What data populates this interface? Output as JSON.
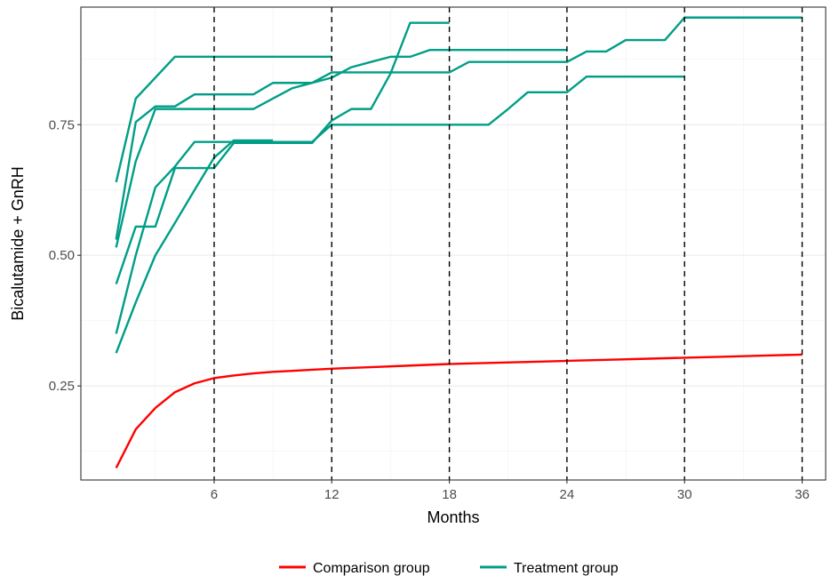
{
  "chart_data": {
    "type": "line",
    "title": "",
    "xlabel": "Months",
    "ylabel": "Bicalutamide + GnRH",
    "xlim": [
      -0.8,
      37.2
    ],
    "ylim": [
      0.07,
      0.975
    ],
    "x_ticks": [
      6,
      12,
      18,
      24,
      30,
      36
    ],
    "x_tick_labels": [
      "6",
      "12",
      "18",
      "24",
      "30",
      "36"
    ],
    "y_ticks": [
      0.25,
      0.5,
      0.75
    ],
    "y_tick_labels": [
      "0.25",
      "0.50",
      "0.75"
    ],
    "vlines": [
      6,
      12,
      18,
      24,
      30,
      36
    ],
    "grid": true,
    "legend_position": "bottom",
    "colors": {
      "comparison": "#ff0000",
      "treatment": "#009e87"
    },
    "legend": [
      {
        "label": "Comparison group",
        "color": "#ff0000"
      },
      {
        "label": "Treatment group",
        "color": "#009e87"
      }
    ],
    "series": [
      {
        "name": "Comparison group",
        "color": "#ff0000",
        "points": [
          [
            1,
            0.093
          ],
          [
            2,
            0.167
          ],
          [
            3,
            0.208
          ],
          [
            4,
            0.238
          ],
          [
            5,
            0.255
          ],
          [
            6,
            0.265
          ],
          [
            7,
            0.27
          ],
          [
            8,
            0.274
          ],
          [
            9,
            0.277
          ],
          [
            10,
            0.279
          ],
          [
            11,
            0.281
          ],
          [
            12,
            0.283
          ],
          [
            14,
            0.286
          ],
          [
            16,
            0.289
          ],
          [
            18,
            0.292
          ],
          [
            20,
            0.294
          ],
          [
            22,
            0.296
          ],
          [
            24,
            0.298
          ],
          [
            26,
            0.3
          ],
          [
            28,
            0.302
          ],
          [
            30,
            0.304
          ],
          [
            32,
            0.306
          ],
          [
            34,
            0.308
          ],
          [
            36,
            0.31
          ]
        ]
      },
      {
        "name": "Treatment group",
        "color": "#009e87",
        "points": [
          [
            1,
            0.64
          ],
          [
            2,
            0.8
          ],
          [
            4,
            0.88
          ],
          [
            12,
            0.88
          ]
        ]
      },
      {
        "name": "Treatment group",
        "color": "#009e87",
        "points": [
          [
            1,
            0.445
          ],
          [
            2,
            0.555
          ],
          [
            3,
            0.555
          ],
          [
            4,
            0.667
          ],
          [
            6,
            0.667
          ],
          [
            7,
            0.715
          ],
          [
            8,
            0.715
          ],
          [
            9,
            0.715
          ],
          [
            10,
            0.715
          ],
          [
            11,
            0.715
          ],
          [
            12,
            0.758
          ],
          [
            13,
            0.78
          ],
          [
            14,
            0.78
          ],
          [
            15,
            0.848
          ],
          [
            16,
            0.945
          ],
          [
            18,
            0.945
          ]
        ]
      },
      {
        "name": "Treatment group",
        "color": "#009e87",
        "points": [
          [
            1,
            0.53
          ],
          [
            2,
            0.755
          ],
          [
            3,
            0.785
          ],
          [
            4,
            0.785
          ],
          [
            5,
            0.808
          ],
          [
            6,
            0.808
          ],
          [
            7,
            0.808
          ],
          [
            8,
            0.808
          ],
          [
            9,
            0.83
          ],
          [
            10,
            0.83
          ],
          [
            11,
            0.83
          ],
          [
            12,
            0.85
          ],
          [
            13,
            0.85
          ],
          [
            14,
            0.85
          ],
          [
            15,
            0.85
          ],
          [
            16,
            0.85
          ],
          [
            17,
            0.85
          ],
          [
            18,
            0.85
          ],
          [
            19,
            0.87
          ],
          [
            20,
            0.87
          ],
          [
            21,
            0.87
          ],
          [
            22,
            0.87
          ],
          [
            23,
            0.87
          ],
          [
            24,
            0.87
          ],
          [
            25,
            0.89
          ],
          [
            26,
            0.89
          ],
          [
            27,
            0.912
          ],
          [
            28,
            0.912
          ],
          [
            29,
            0.912
          ],
          [
            30,
            0.955
          ],
          [
            36,
            0.955
          ]
        ]
      },
      {
        "name": "Treatment group",
        "color": "#009e87",
        "points": [
          [
            1,
            0.515
          ],
          [
            2,
            0.68
          ],
          [
            3,
            0.78
          ],
          [
            4,
            0.78
          ],
          [
            5,
            0.78
          ],
          [
            6,
            0.78
          ],
          [
            7,
            0.78
          ],
          [
            8,
            0.78
          ],
          [
            9,
            0.8
          ],
          [
            10,
            0.82
          ],
          [
            11,
            0.83
          ],
          [
            12,
            0.84
          ],
          [
            13,
            0.86
          ],
          [
            14,
            0.87
          ],
          [
            15,
            0.88
          ],
          [
            16,
            0.88
          ],
          [
            17,
            0.893
          ],
          [
            18,
            0.893
          ],
          [
            24,
            0.893
          ]
        ]
      },
      {
        "name": "Treatment group",
        "color": "#009e87",
        "points": [
          [
            1,
            0.35
          ],
          [
            2,
            0.5
          ],
          [
            3,
            0.63
          ],
          [
            4,
            0.67
          ],
          [
            5,
            0.717
          ],
          [
            6,
            0.717
          ],
          [
            7,
            0.717
          ],
          [
            8,
            0.717
          ],
          [
            9,
            0.717
          ],
          [
            10,
            0.717
          ],
          [
            11,
            0.717
          ],
          [
            12,
            0.75
          ],
          [
            13,
            0.75
          ],
          [
            14,
            0.75
          ],
          [
            15,
            0.75
          ],
          [
            16,
            0.75
          ],
          [
            17,
            0.75
          ],
          [
            18,
            0.75
          ],
          [
            19,
            0.75
          ],
          [
            20,
            0.75
          ],
          [
            21,
            0.78
          ],
          [
            22,
            0.812
          ],
          [
            23,
            0.812
          ],
          [
            24,
            0.812
          ],
          [
            25,
            0.842
          ],
          [
            26,
            0.842
          ],
          [
            27,
            0.842
          ],
          [
            28,
            0.842
          ],
          [
            29,
            0.842
          ],
          [
            30,
            0.842
          ]
        ]
      },
      {
        "name": "Treatment group",
        "color": "#009e87",
        "points": [
          [
            1,
            0.313
          ],
          [
            2,
            0.41
          ],
          [
            3,
            0.5
          ],
          [
            4,
            0.562
          ],
          [
            5,
            0.625
          ],
          [
            6,
            0.687
          ],
          [
            7,
            0.72
          ],
          [
            8,
            0.72
          ],
          [
            9,
            0.72
          ]
        ]
      }
    ]
  }
}
